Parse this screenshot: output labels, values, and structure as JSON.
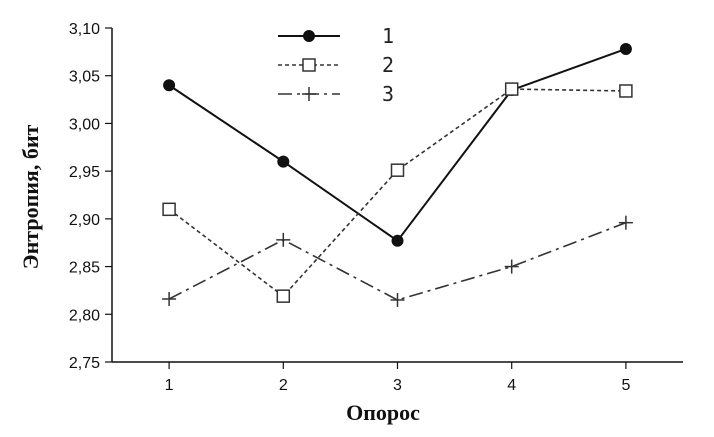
{
  "chart_data": {
    "type": "line",
    "x": [
      1,
      2,
      3,
      4,
      5
    ],
    "x_tick_labels": [
      "1",
      "2",
      "3",
      "4",
      "5"
    ],
    "xlim": [
      0.5,
      5.5
    ],
    "ylim": [
      2.75,
      3.1
    ],
    "y_ticks": [
      2.75,
      2.8,
      2.85,
      2.9,
      2.95,
      3.0,
      3.05,
      3.1
    ],
    "y_tick_labels": [
      "2,75",
      "2,80",
      "2,85",
      "2,90",
      "2,95",
      "3,00",
      "3,05",
      "3,10"
    ],
    "xlabel": "Опорос",
    "ylabel": "Энтропия, бит",
    "grid": false,
    "legend_position": "top-center",
    "series": [
      {
        "name": "1",
        "values": [
          3.04,
          2.96,
          2.877,
          3.035,
          3.078
        ],
        "line_style": "solid",
        "marker": "filled-circle",
        "color": "#111111"
      },
      {
        "name": "2",
        "values": [
          2.91,
          2.819,
          2.951,
          3.036,
          3.034
        ],
        "line_style": "dotted",
        "marker": "open-square",
        "color": "#333333"
      },
      {
        "name": "3",
        "values": [
          2.816,
          2.878,
          2.815,
          2.85,
          2.896
        ],
        "line_style": "dash-dot",
        "marker": "plus",
        "color": "#333333"
      }
    ]
  }
}
